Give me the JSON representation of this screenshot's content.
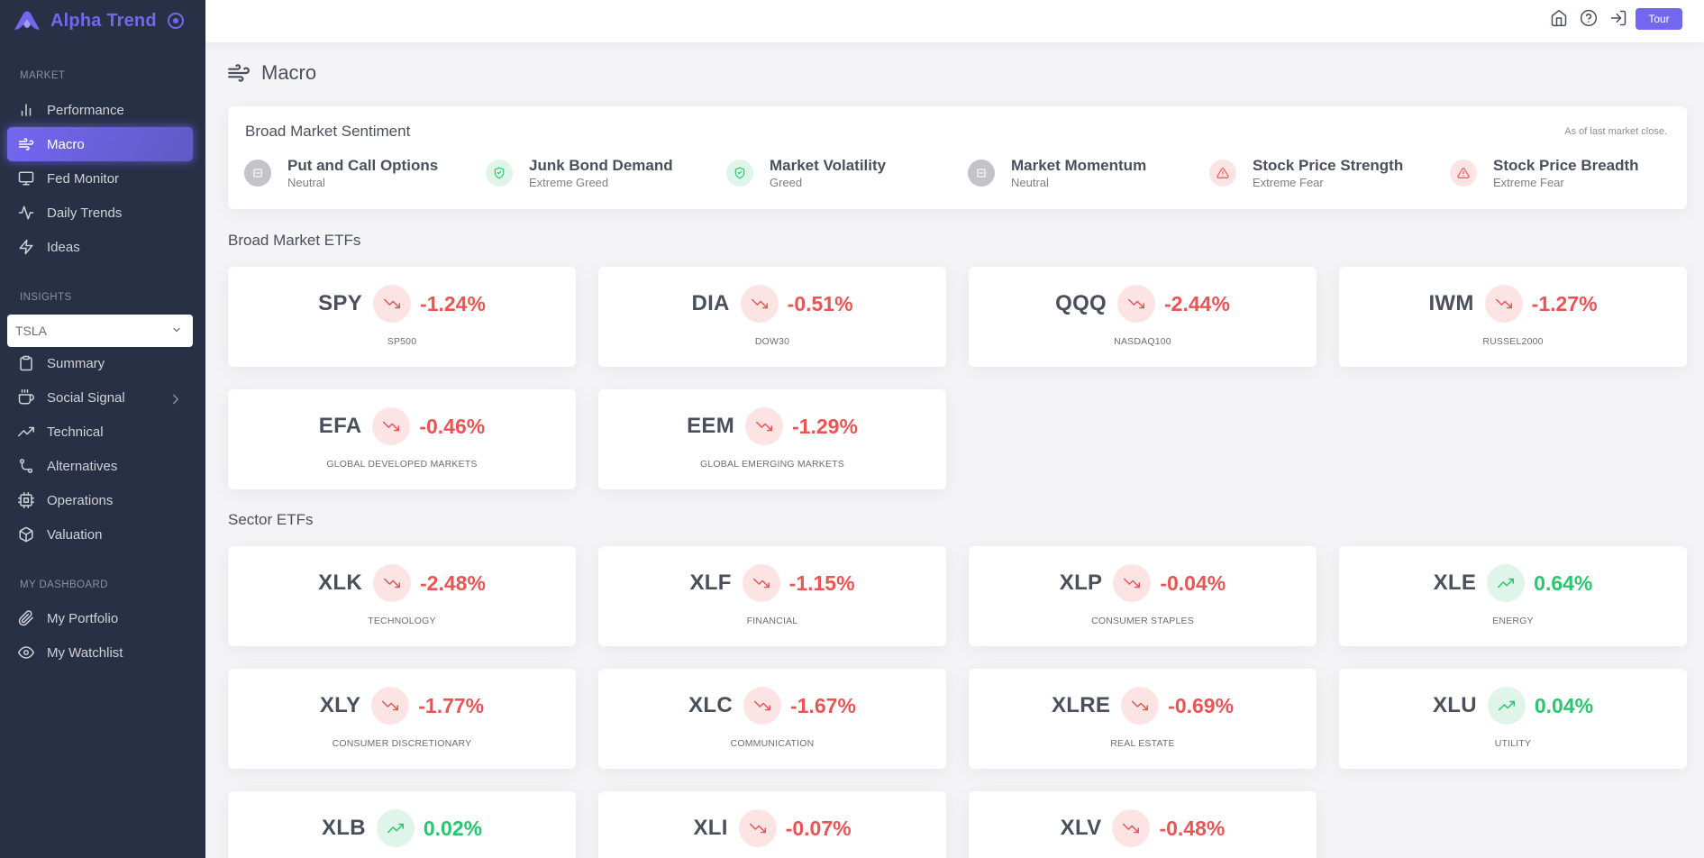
{
  "brand": {
    "name": "Alpha Trend"
  },
  "sidebar": {
    "market_title": "MARKET",
    "market_items": [
      {
        "label": "Performance",
        "icon": "bar-chart-icon"
      },
      {
        "label": "Macro",
        "icon": "wind-icon"
      },
      {
        "label": "Fed Monitor",
        "icon": "monitor-icon"
      },
      {
        "label": "Daily Trends",
        "icon": "activity-icon"
      },
      {
        "label": "Ideas",
        "icon": "zap-icon"
      }
    ],
    "insights_title": "INSIGHTS",
    "ticker_value": "TSLA",
    "insights_items": [
      {
        "label": "Summary",
        "icon": "clipboard-icon"
      },
      {
        "label": "Social Signal",
        "icon": "coffee-icon"
      },
      {
        "label": "Technical",
        "icon": "trending-up-icon"
      },
      {
        "label": "Alternatives",
        "icon": "git-branch-icon"
      },
      {
        "label": "Operations",
        "icon": "cpu-icon"
      },
      {
        "label": "Valuation",
        "icon": "box-icon"
      }
    ],
    "dashboard_title": "MY DASHBOARD",
    "dashboard_items": [
      {
        "label": "My Portfolio",
        "icon": "paperclip-icon"
      },
      {
        "label": "My Watchlist",
        "icon": "eye-icon"
      }
    ]
  },
  "topbar": {
    "tour_label": "Tour"
  },
  "page": {
    "title": "Macro"
  },
  "sentiment": {
    "title": "Broad Market Sentiment",
    "note": "As of last market close.",
    "indicators": [
      {
        "name": "Put and Call Options",
        "status": "Neutral",
        "level": "neutral"
      },
      {
        "name": "Junk Bond Demand",
        "status": "Extreme Greed",
        "level": "greed"
      },
      {
        "name": "Market Volatility",
        "status": "Greed",
        "level": "greed"
      },
      {
        "name": "Market Momentum",
        "status": "Neutral",
        "level": "neutral"
      },
      {
        "name": "Stock Price Strength",
        "status": "Extreme Fear",
        "level": "fear"
      },
      {
        "name": "Stock Price Breadth",
        "status": "Extreme Fear",
        "level": "fear"
      }
    ]
  },
  "broad_etfs": {
    "title": "Broad Market ETFs",
    "items": [
      {
        "symbol": "SPY",
        "change": "-1.24%",
        "label": "SP500",
        "direction": "down"
      },
      {
        "symbol": "DIA",
        "change": "-0.51%",
        "label": "DOW30",
        "direction": "down"
      },
      {
        "symbol": "QQQ",
        "change": "-2.44%",
        "label": "NASDAQ100",
        "direction": "down"
      },
      {
        "symbol": "IWM",
        "change": "-1.27%",
        "label": "RUSSEL2000",
        "direction": "down"
      },
      {
        "symbol": "EFA",
        "change": "-0.46%",
        "label": "GLOBAL DEVELOPED MARKETS",
        "direction": "down"
      },
      {
        "symbol": "EEM",
        "change": "-1.29%",
        "label": "GLOBAL EMERGING MARKETS",
        "direction": "down"
      }
    ]
  },
  "sector_etfs": {
    "title": "Sector ETFs",
    "items": [
      {
        "symbol": "XLK",
        "change": "-2.48%",
        "label": "TECHNOLOGY",
        "direction": "down"
      },
      {
        "symbol": "XLF",
        "change": "-1.15%",
        "label": "FINANCIAL",
        "direction": "down"
      },
      {
        "symbol": "XLP",
        "change": "-0.04%",
        "label": "CONSUMER STAPLES",
        "direction": "down"
      },
      {
        "symbol": "XLE",
        "change": "0.64%",
        "label": "ENERGY",
        "direction": "up"
      },
      {
        "symbol": "XLY",
        "change": "-1.77%",
        "label": "CONSUMER DISCRETIONARY",
        "direction": "down"
      },
      {
        "symbol": "XLC",
        "change": "-1.67%",
        "label": "COMMUNICATION",
        "direction": "down"
      },
      {
        "symbol": "XLRE",
        "change": "-0.69%",
        "label": "REAL ESTATE",
        "direction": "down"
      },
      {
        "symbol": "XLU",
        "change": "0.04%",
        "label": "UTILITY",
        "direction": "up"
      },
      {
        "symbol": "XLB",
        "change": "0.02%",
        "label": "",
        "direction": "up"
      },
      {
        "symbol": "XLI",
        "change": "-0.07%",
        "label": "",
        "direction": "down"
      },
      {
        "symbol": "XLV",
        "change": "-0.48%",
        "label": "",
        "direction": "down"
      }
    ]
  },
  "colors": {
    "accent": "#7367f0",
    "sidebar": "#283046",
    "down": "#ea5455",
    "up": "#28c76f"
  }
}
